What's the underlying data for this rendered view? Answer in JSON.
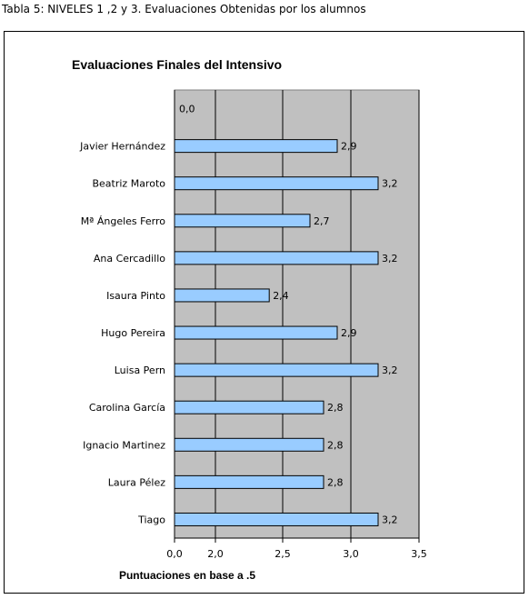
{
  "caption": "Tabla 5: NIVELES 1 ,2 y 3. Evaluaciones Obtenidas por los alumnos",
  "chart_data": {
    "type": "bar",
    "orientation": "horizontal",
    "title": "Evaluaciones Finales del Intensivo",
    "xlabel": "Puntuaciones en base a .5",
    "ylabel": "",
    "categories": [
      "",
      "Javier Hernández",
      "Beatriz Maroto",
      "Mª Ángeles Ferro",
      "Ana Cercadillo",
      "Isaura Pinto",
      "Hugo Pereira",
      "Luisa Pern",
      "Carolina García",
      "Ignacio Martinez",
      "Laura Pélez",
      "Tiago"
    ],
    "values": [
      0.0,
      2.9,
      3.2,
      2.7,
      3.2,
      2.4,
      2.9,
      3.2,
      2.8,
      2.8,
      2.8,
      3.2
    ],
    "data_labels": [
      "0,0",
      "2,9",
      "3,2",
      "2,7",
      "3,2",
      "2,4",
      "2,9",
      "3,2",
      "2,8",
      "2,8",
      "2,8",
      "3,2"
    ],
    "x_ticks": [
      0.0,
      2.0,
      2.5,
      3.0,
      3.5
    ],
    "x_tick_labels": [
      "0,0",
      "2,0",
      "2,5",
      "3,0",
      "3,5"
    ],
    "xlim": [
      0.0,
      3.5
    ],
    "grid": "vertical",
    "legend": "none",
    "colors": {
      "bar_fill": "#99ccff",
      "bar_stroke": "#000000",
      "plot_bg": "#c0c0c0",
      "chart_bg": "#ffffff"
    }
  }
}
